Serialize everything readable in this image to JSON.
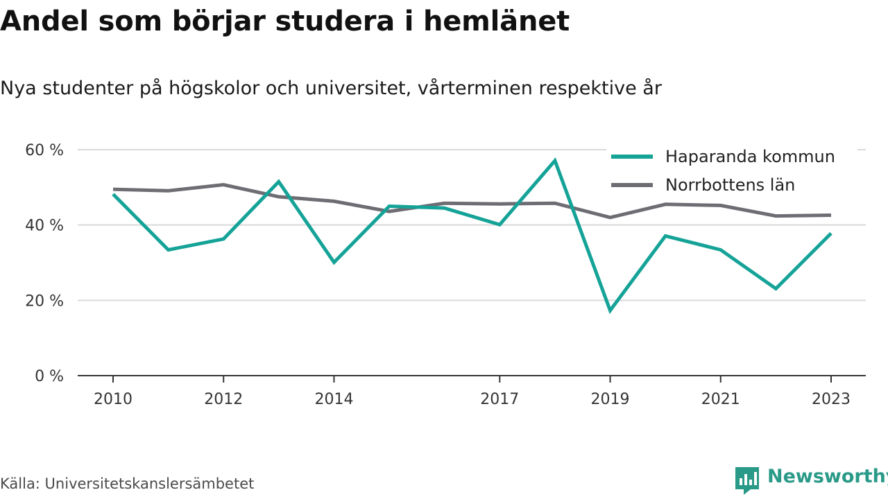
{
  "title": "Andel som börjar studera i hemlänet",
  "subtitle": "Nya studenter på högskolor och universitet, vårterminen respektive år",
  "source": "Källa: Universitetskanslersämbetet",
  "brand": "Newsworthy",
  "icons": {
    "brand_logo": "bar-chart-logo-icon"
  },
  "colors": {
    "haparanda": "#15a398",
    "norrbotten": "#6e6d74",
    "grid": "#d9d9d9",
    "axis": "#333333",
    "brand": "#2a9a88"
  },
  "chart_data": {
    "type": "line",
    "title": "Andel som börjar studera i hemlänet",
    "subtitle": "Nya studenter på högskolor och universitet, vårterminen respektive år",
    "x": [
      2010,
      2011,
      2012,
      2013,
      2014,
      2015,
      2016,
      2017,
      2018,
      2019,
      2020,
      2021,
      2022,
      2023
    ],
    "x_ticks": [
      2010,
      2012,
      2014,
      2017,
      2019,
      2021,
      2023
    ],
    "x_tick_labels": [
      "2010",
      "2012",
      "2014",
      "2017",
      "2019",
      "2021",
      "2023"
    ],
    "y_ticks": [
      0,
      20,
      40,
      60
    ],
    "y_tick_labels": [
      "0 %",
      "20 %",
      "40 %",
      "60 %"
    ],
    "ylim": [
      0,
      60
    ],
    "grid": true,
    "legend_position": "top-right",
    "series": [
      {
        "name": "Haparanda kommun",
        "color": "#15a398",
        "values": [
          48.2,
          33.4,
          36.3,
          51.5,
          30.1,
          45.0,
          44.5,
          40.1,
          57.1,
          17.3,
          37.1,
          33.4,
          23.1,
          37.8
        ]
      },
      {
        "name": "Norrbottens län",
        "color": "#6e6d74",
        "values": [
          49.5,
          49.1,
          50.7,
          47.5,
          46.3,
          43.6,
          45.8,
          45.6,
          45.8,
          42.0,
          45.5,
          45.2,
          42.4,
          42.6
        ]
      }
    ]
  }
}
